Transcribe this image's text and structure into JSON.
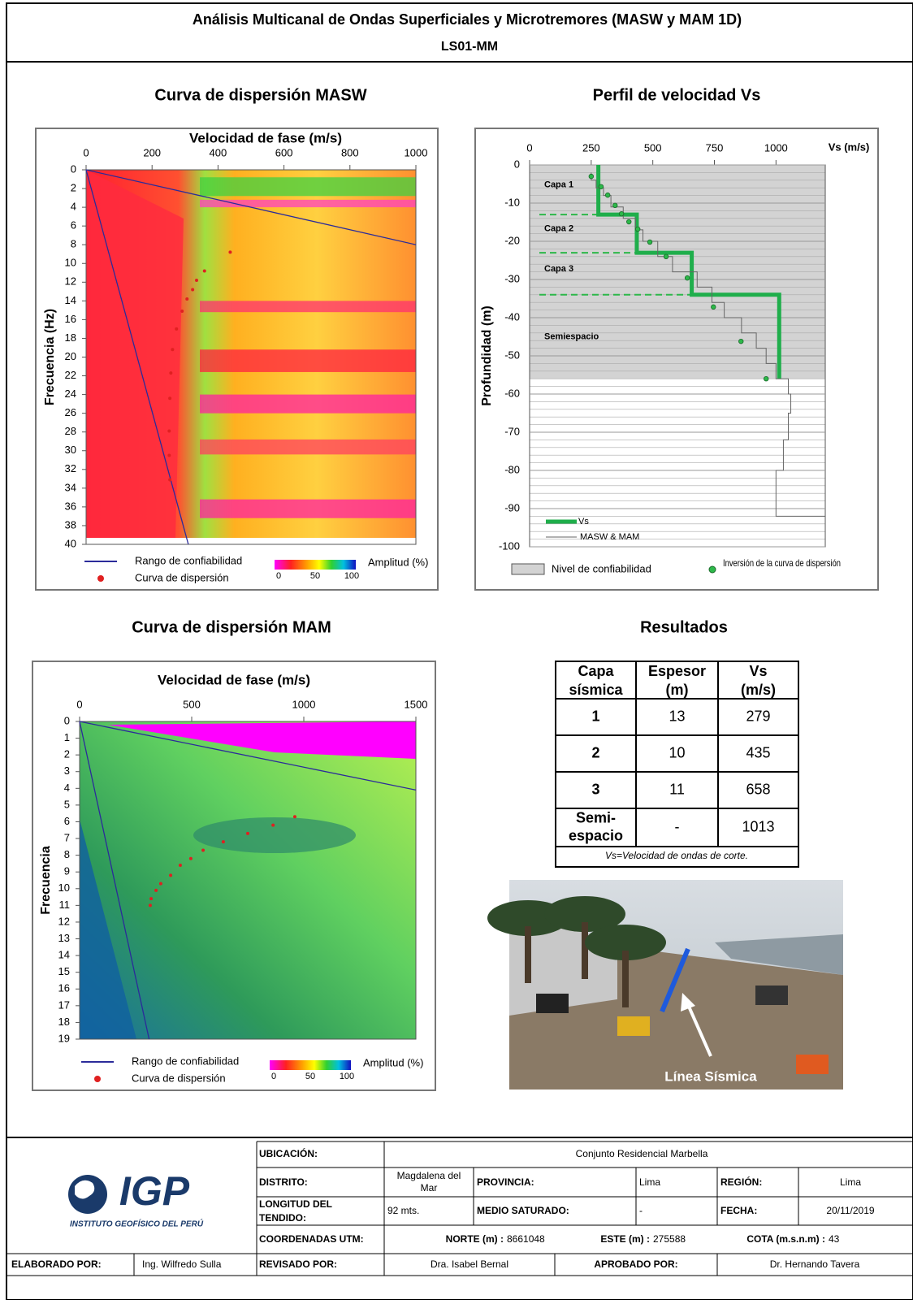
{
  "header": {
    "title": "Análisis Multicanal de Ondas Superficiales y Microtremores (MASW y MAM 1D)",
    "code": "LS01-MM"
  },
  "chart_data": [
    {
      "type": "dispersion",
      "title": "Curva de dispersión MASW",
      "xlabel": "Velocidad de fase (m/s)",
      "ylabel": "Frecuencia (Hz)",
      "xlim": [
        0,
        1000
      ],
      "xticks": [
        0,
        200,
        400,
        600,
        800,
        1000
      ],
      "ylim": [
        0,
        40
      ],
      "y_reversed": true,
      "yticks": [
        0,
        2,
        4,
        6,
        8,
        10,
        12,
        14,
        16,
        18,
        20,
        22,
        24,
        26,
        28,
        30,
        32,
        34,
        36,
        38,
        40
      ],
      "reliability_range": {
        "name": "Rango de confiabilidad",
        "color": "#2b2b9a",
        "lines": [
          {
            "x": [
              0,
              1000
            ],
            "y": [
              0,
              8
            ]
          },
          {
            "x": [
              0,
              310
            ],
            "y": [
              0,
              40
            ]
          }
        ]
      },
      "series": [
        {
          "name": "Curva de dispersión",
          "color": "#e02020",
          "x": [
            437,
            359,
            335,
            323,
            306,
            291,
            274,
            262,
            257,
            254,
            252,
            252,
            254
          ],
          "values": [
            8.8,
            10.8,
            11.8,
            12.8,
            13.8,
            15.1,
            17,
            19.2,
            21.7,
            24.4,
            27.9,
            30.5,
            33.1
          ]
        }
      ],
      "colorbar": {
        "label": "Amplitud (%)",
        "ticks": [
          0,
          50,
          100
        ]
      }
    },
    {
      "type": "profile",
      "title": "Perfil de velocidad Vs",
      "xlabel": "Vs (m/s)",
      "ylabel": "Profundidad (m)",
      "xlim": [
        0,
        1200
      ],
      "xticks": [
        0,
        250,
        500,
        750,
        1000
      ],
      "ylim": [
        -100,
        0
      ],
      "yticks": [
        0,
        -10,
        -20,
        -30,
        -40,
        -50,
        -60,
        -70,
        -80,
        -90,
        -100
      ],
      "grid": true,
      "reliability": {
        "name": "Nivel de confiabilidad",
        "depth": -56
      },
      "layers": [
        {
          "label": "Capa 1",
          "bottom": -13
        },
        {
          "label": "Capa 2",
          "bottom": -23
        },
        {
          "label": "Capa 3",
          "bottom": -34
        },
        {
          "label": "Semiespacio"
        }
      ],
      "series": [
        {
          "name": "Vs",
          "color": "#1fae4b",
          "style": "line",
          "x": [
            279,
            279,
            435,
            435,
            658,
            658,
            1013,
            1013
          ],
          "values": [
            0,
            -13,
            -13,
            -23,
            -23,
            -34,
            -34,
            -56
          ]
        },
        {
          "name": "MASW & MAM",
          "color": "#666666",
          "style": "line",
          "x": [
            250,
            250,
            270,
            270,
            300,
            300,
            330,
            330,
            380,
            380,
            430,
            430,
            460,
            460,
            520,
            520,
            580,
            580,
            680,
            680,
            740,
            740,
            790,
            790,
            860,
            860,
            920,
            920,
            960,
            960,
            1000,
            1000,
            1050,
            1050,
            1060,
            1060,
            1050,
            1050,
            1030,
            1030,
            1000,
            1000,
            1200
          ],
          "values": [
            -2,
            -4,
            -4,
            -6,
            -6,
            -8,
            -8,
            -11,
            -11,
            -14,
            -14,
            -17,
            -17,
            -20,
            -20,
            -24,
            -24,
            -28,
            -28,
            -32,
            -32,
            -36,
            -36,
            -40,
            -40,
            -44,
            -44,
            -48,
            -48,
            -52,
            -52,
            -56,
            -56,
            -60,
            -60,
            -65,
            -65,
            -72,
            -72,
            -80,
            -80,
            -92,
            -92
          ]
        },
        {
          "name": "Inversión de la curva de dispersión",
          "color": "#2db84a",
          "style": "dots",
          "x": [
            250,
            290,
            317,
            347,
            373,
            403,
            439,
            488,
            554,
            640,
            746,
            858,
            960
          ],
          "values": [
            -3,
            -5.7,
            -7.9,
            -10.6,
            -12.8,
            -14.9,
            -16.8,
            -20.2,
            -24,
            -29.6,
            -37.2,
            -46.2,
            -56
          ]
        }
      ]
    },
    {
      "type": "dispersion",
      "title": "Curva de dispersión MAM",
      "xlabel": "Velocidad de fase (m/s)",
      "ylabel": "Frecuencia",
      "xlim": [
        0,
        1500
      ],
      "xticks": [
        0,
        500,
        1000,
        1500
      ],
      "ylim": [
        0,
        19
      ],
      "y_reversed": true,
      "yticks": [
        0,
        1,
        2,
        3,
        4,
        5,
        6,
        7,
        8,
        9,
        10,
        11,
        12,
        13,
        14,
        15,
        16,
        17,
        18,
        19
      ],
      "reliability_range": {
        "name": "Rango de confiabilidad",
        "color": "#2b2b9a",
        "lines": [
          {
            "x": [
              0,
              1500
            ],
            "y": [
              0,
              4.1
            ]
          },
          {
            "x": [
              0,
              310
            ],
            "y": [
              0,
              19
            ]
          }
        ]
      },
      "series": [
        {
          "name": "Curva de dispersión",
          "color": "#e02020",
          "x": [
            960,
            863,
            750,
            641,
            551,
            496,
            449,
            406,
            362,
            341,
            319,
            315
          ],
          "values": [
            5.7,
            6.2,
            6.7,
            7.2,
            7.7,
            8.2,
            8.6,
            9.2,
            9.7,
            10.1,
            10.6,
            11.0
          ]
        }
      ],
      "colorbar": {
        "label": "Amplitud (%)",
        "ticks": [
          0,
          50,
          100
        ]
      }
    }
  ],
  "results": {
    "title": "Resultados",
    "headers": [
      [
        "Capa",
        "sísmica"
      ],
      [
        "Espesor",
        "(m)"
      ],
      [
        "Vs",
        "(m/s)"
      ]
    ],
    "rows": [
      [
        "1",
        13,
        279
      ],
      [
        "2",
        10,
        435
      ],
      [
        "3",
        11,
        658
      ],
      [
        [
          "Semi-",
          "espacio"
        ],
        "-",
        1013
      ]
    ],
    "note": "Vs=Velocidad de ondas de corte."
  },
  "photo": {
    "caption": "Línea Sísmica"
  },
  "footer": {
    "logo": "IGP",
    "institute": "INSTITUTO GEOFÍSICO DEL PERÚ",
    "ubicacion_label": "UBICACIÓN:",
    "ubicacion": "Conjunto Residencial Marbella",
    "distrito_label": "DISTRITO:",
    "distrito": [
      "Magdalena del",
      "Mar"
    ],
    "provincia_label": "PROVINCIA:",
    "provincia": "Lima",
    "region_label": "REGIÓN:",
    "region": "Lima",
    "longitud_label": [
      "LONGITUD DEL",
      "TENDIDO:"
    ],
    "longitud": "92 mts.",
    "medio_label": "MEDIO SATURADO:",
    "medio": "-",
    "fecha_label": "FECHA:",
    "fecha": "20/11/2019",
    "utm_label": "COORDENADAS UTM:",
    "norte_label": "NORTE (m) :",
    "norte": 8661048,
    "este_label": "ESTE (m) :",
    "este": 275588,
    "cota_label": "COTA (m.s.n.m) :",
    "cota": 43,
    "elaborado_label": "ELABORADO POR:",
    "elaborado": "Ing. Wilfredo Sulla",
    "revisado_label": "REVISADO POR:",
    "revisado": "Dra. Isabel Bernal",
    "aprobado_label": "APROBADO POR:",
    "aprobado": "Dr. Hernando Tavera"
  }
}
